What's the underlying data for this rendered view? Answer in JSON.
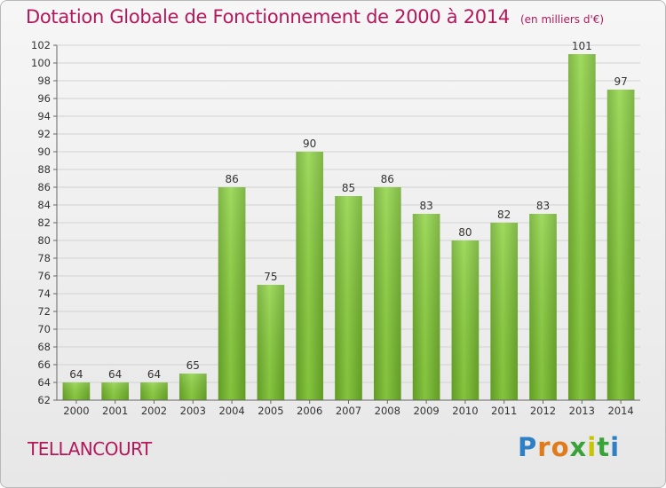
{
  "chart_data": {
    "type": "bar",
    "title": "Dotation Globale de Fonctionnement de 2000 à 2014",
    "subtitle": "(en milliers d'€)",
    "categories": [
      "2000",
      "2001",
      "2002",
      "2003",
      "2004",
      "2005",
      "2006",
      "2007",
      "2008",
      "2009",
      "2010",
      "2011",
      "2012",
      "2013",
      "2014"
    ],
    "values": [
      64,
      64,
      64,
      65,
      86,
      75,
      90,
      85,
      86,
      83,
      80,
      82,
      83,
      101,
      97
    ],
    "ylim": [
      62,
      102
    ],
    "yticks": [
      62,
      64,
      66,
      68,
      70,
      72,
      74,
      76,
      78,
      80,
      82,
      84,
      86,
      88,
      90,
      92,
      94,
      96,
      98,
      100,
      102
    ],
    "grid": true,
    "bar_color": "#7cc232"
  },
  "footer": {
    "commune": "TELLANCOURT",
    "logo": [
      "P",
      "r",
      "o",
      "x",
      "i",
      "t",
      "i"
    ]
  }
}
